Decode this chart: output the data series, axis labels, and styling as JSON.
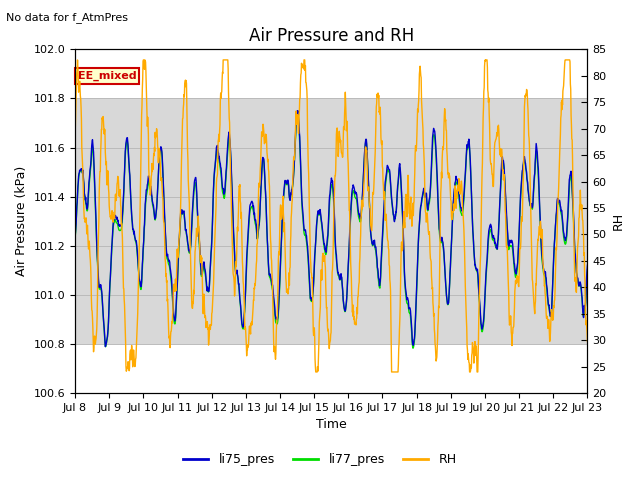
{
  "title": "Air Pressure and RH",
  "top_left_text": "No data for f_AtmPres",
  "annotation_text": "EE_mixed",
  "xlabel": "Time",
  "ylabel_left": "Air Pressure (kPa)",
  "ylabel_right": "RH",
  "ylim_left": [
    100.6,
    102.0
  ],
  "ylim_right": [
    20,
    85
  ],
  "yticks_left": [
    100.6,
    100.8,
    101.0,
    101.2,
    101.4,
    101.6,
    101.8,
    102.0
  ],
  "yticks_right": [
    20,
    25,
    30,
    35,
    40,
    45,
    50,
    55,
    60,
    65,
    70,
    75,
    80,
    85
  ],
  "xtick_labels": [
    "Jul 8",
    "Jul 9",
    "Jul 10",
    "Jul 11",
    "Jul 12",
    "Jul 13",
    "Jul 14",
    "Jul 15",
    "Jul 16",
    "Jul 17",
    "Jul 18",
    "Jul 19",
    "Jul 20",
    "Jul 21",
    "Jul 22",
    "Jul 23"
  ],
  "shade_ylim": [
    100.8,
    101.8
  ],
  "shade_color": "#d8d8d8",
  "color_li75": "#0000cc",
  "color_li77": "#00dd00",
  "color_rh": "#ffaa00",
  "legend_labels": [
    "li75_pres",
    "li77_pres",
    "RH"
  ],
  "background_color": "#ffffff",
  "grid_color": "#bbbbbb",
  "annotation_facecolor": "#ffffcc",
  "annotation_edgecolor": "#cc0000",
  "title_fontsize": 12,
  "label_fontsize": 9,
  "tick_fontsize": 8
}
